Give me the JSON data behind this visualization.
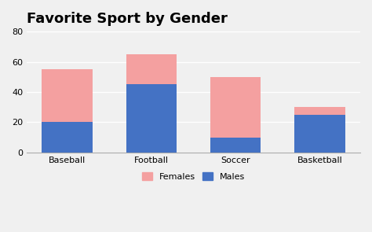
{
  "title": "Favorite Sport by Gender",
  "categories": [
    "Baseball",
    "Football",
    "Soccer",
    "Basketball"
  ],
  "males": [
    20,
    45,
    10,
    25
  ],
  "females": [
    35,
    20,
    40,
    5
  ],
  "males_color": "#4472C4",
  "females_color": "#F4A0A0",
  "ylim": [
    0,
    80
  ],
  "yticks": [
    0,
    20,
    40,
    60,
    80
  ],
  "title_fontsize": 13,
  "legend_labels": [
    "Females",
    "Males"
  ],
  "background_color": "#F0F0F0",
  "plot_bg_color": "#F0F0F0",
  "grid_color": "#FFFFFF",
  "tick_fontsize": 8,
  "bar_width": 0.6
}
